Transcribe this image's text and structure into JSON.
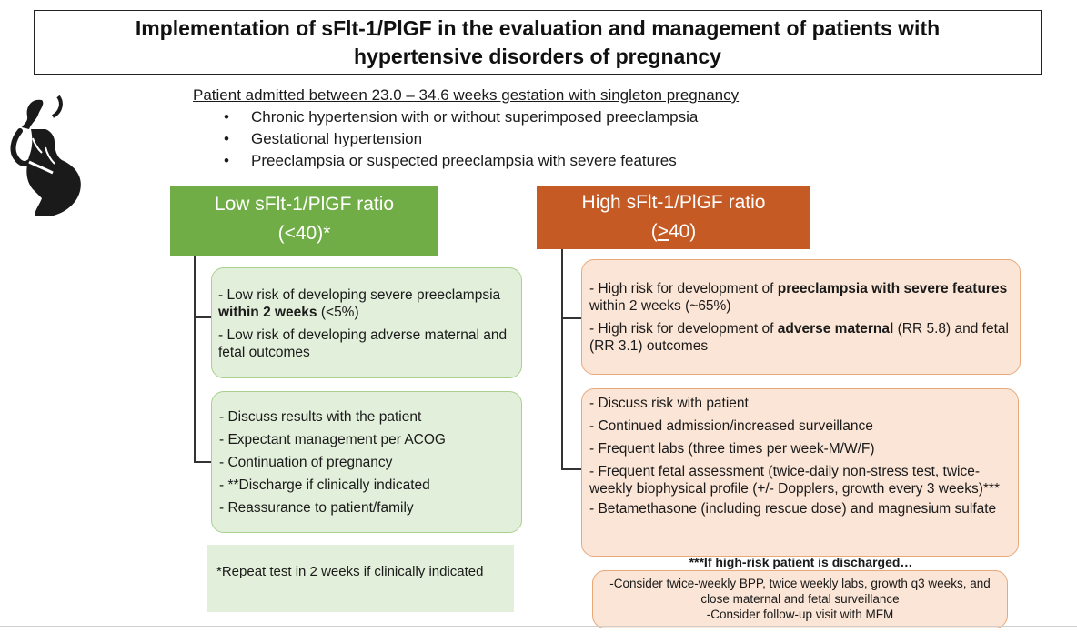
{
  "title": {
    "line1": "Implementation of sFlt-1/PlGF in the evaluation and management of patients with",
    "line2": "hypertensive disorders of pregnancy"
  },
  "intro": {
    "heading": "Patient admitted between 23.0 – 34.6 weeks gestation with singleton pregnancy",
    "bullets": [
      "Chronic hypertension with or without superimposed preeclampsia",
      "Gestational hypertension",
      "Preeclampsia or suspected preeclampsia with severe features"
    ]
  },
  "low": {
    "header_line1": "Low sFlt-1/PlGF ratio",
    "header_line2": "(<40)*",
    "risk": {
      "item1_pre": "- Low risk of developing severe preeclampsia ",
      "item1_bold": "within 2 weeks",
      "item1_post": " (<5%)",
      "item2": "- Low risk of developing adverse maternal and fetal outcomes"
    },
    "management": [
      "- Discuss results with the patient",
      "- Expectant management per ACOG",
      "- Continuation of pregnancy",
      "- **Discharge if clinically indicated",
      "- Reassurance to patient/family"
    ],
    "note": "*Repeat test in 2 weeks if clinically indicated"
  },
  "high": {
    "header_line1": "High sFlt-1/PlGF ratio",
    "header_sym": ">",
    "header_num": "40)",
    "header_open": "(",
    "risk": {
      "item1_pre": "- High risk for development of ",
      "item1_bold": "preeclampsia with severe features",
      "item1_post": " within 2 weeks (~65%)",
      "item2_pre": "- High risk for development of ",
      "item2_bold": "adverse maternal",
      "item2_post": " (RR 5.8) and fetal (RR 3.1) outcomes"
    },
    "management": {
      "item1": "- Discuss risk with patient",
      "item2": "- Continued admission/increased surveillance",
      "item3": "- Frequent labs (three times per week-M/W/F)",
      "item4": "- Frequent fetal assessment (twice-daily non-stress test, twice-weekly biophysical profile (+/- Dopplers, growth every 3 weeks)***",
      "item5": "- Betamethasone (including rescue dose) and magnesium sulfate"
    },
    "discharge_title": "***If high-risk patient is discharged…",
    "discharge_line1": "-Consider twice-weekly BPP, twice weekly labs, growth q3 weeks, and close maternal and fetal surveillance",
    "discharge_line2": "-Consider follow-up visit with MFM"
  },
  "colors": {
    "low_header": "#70ad47",
    "high_header": "#c55a25",
    "low_box": "#e2efda",
    "high_box": "#fbe5d6"
  },
  "icons": {
    "pregnancy": "pregnant-woman-icon"
  }
}
